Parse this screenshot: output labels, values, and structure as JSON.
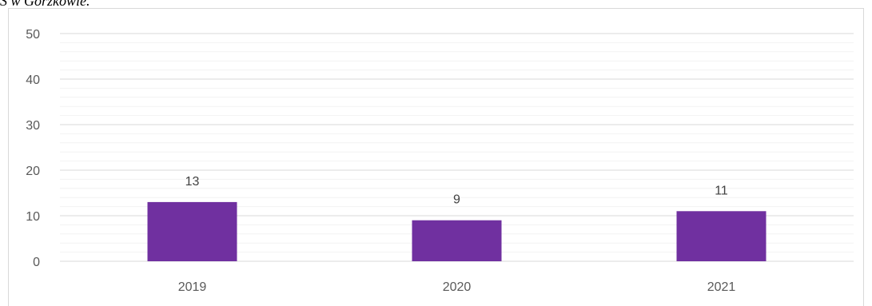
{
  "caption": "S w Gorzkowie.",
  "chart_data": {
    "type": "bar",
    "categories": [
      "2019",
      "2020",
      "2021"
    ],
    "values": [
      13,
      9,
      11
    ],
    "title": "",
    "xlabel": "",
    "ylabel": "",
    "ylim": [
      0,
      50
    ],
    "y_ticks": [
      "0",
      "10",
      "20",
      "30",
      "40",
      "50"
    ],
    "grid": true,
    "data_labels": true,
    "bar_color": "#7030a0",
    "major_grid_color": "#d9d9d9",
    "minor_grid_color": "#f2f2f2"
  }
}
